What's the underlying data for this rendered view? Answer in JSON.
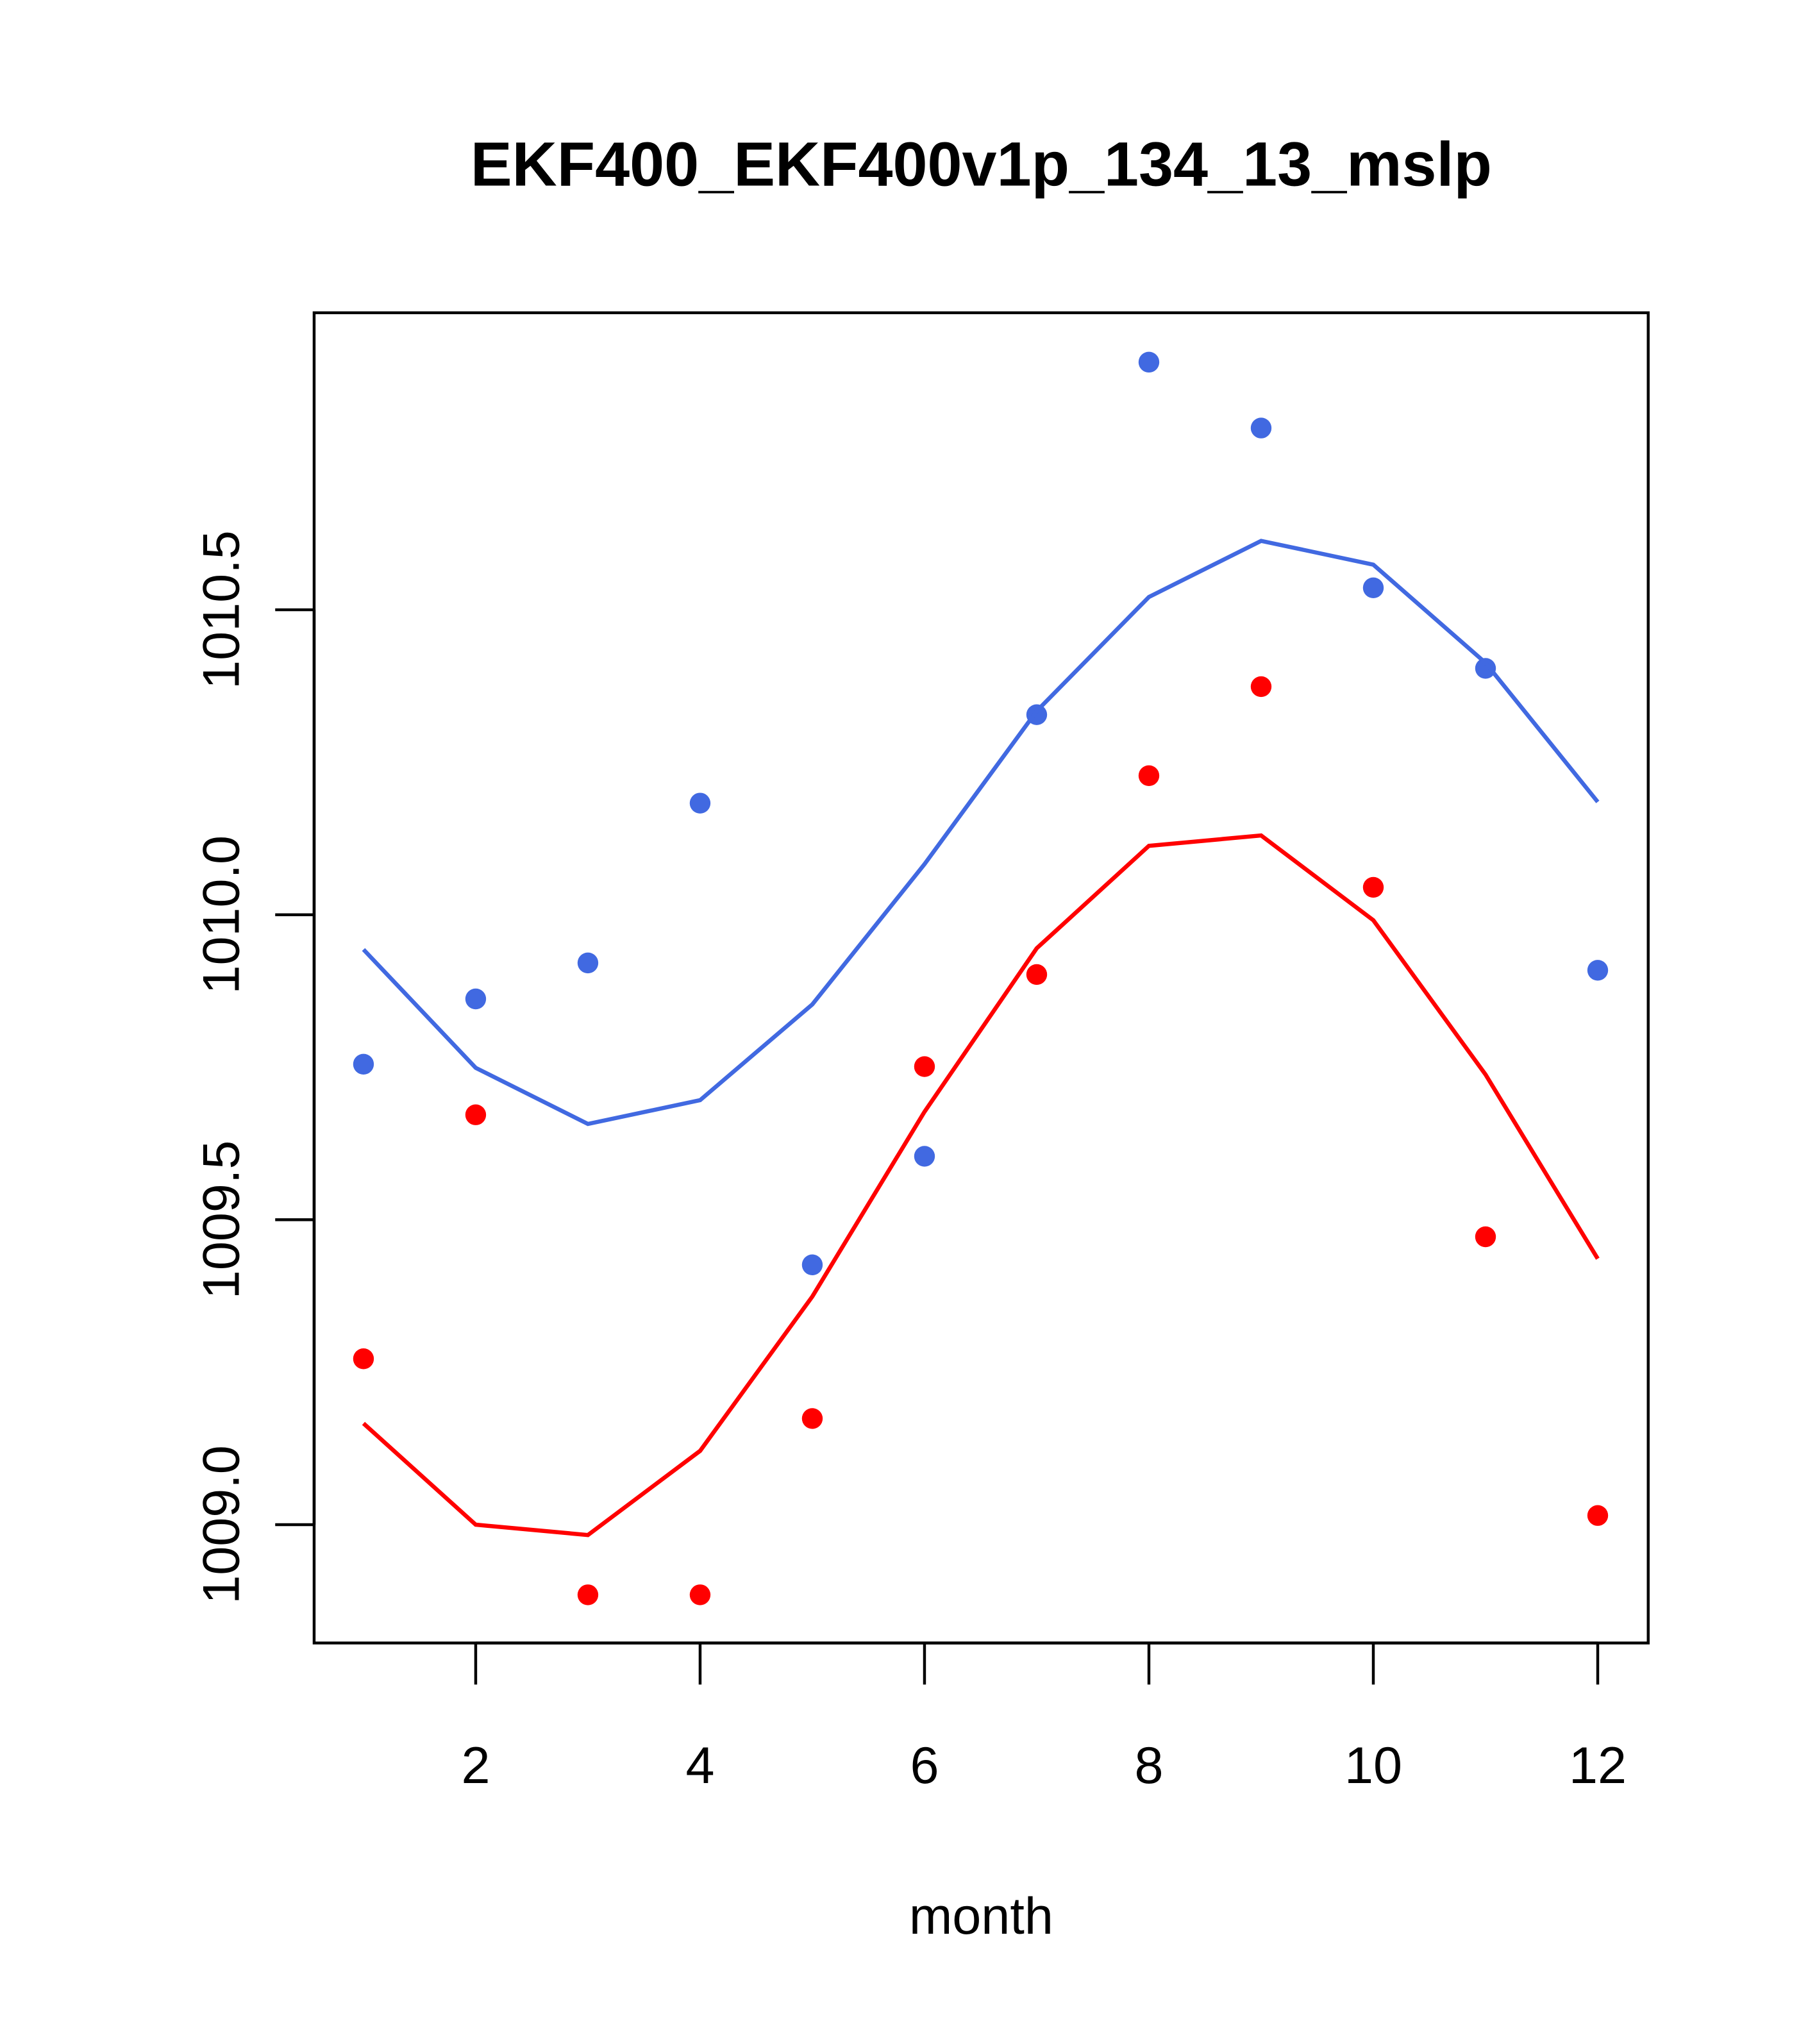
{
  "chart_data": {
    "type": "line",
    "title": "EKF400_EKF400v1p_134_13_mslp",
    "xlabel": "month",
    "ylabel": "",
    "xlim": [
      0.56,
      12.45
    ],
    "ylim": [
      1008.806,
      1010.987
    ],
    "x_ticks": [
      2,
      4,
      6,
      8,
      10,
      12
    ],
    "x_tick_labels": [
      "2",
      "4",
      "6",
      "8",
      "10",
      "12"
    ],
    "y_ticks": [
      1009.0,
      1009.5,
      1010.0,
      1010.5
    ],
    "y_tick_labels": [
      "1009.0",
      "1009.5",
      "1010.0",
      "1010.5"
    ],
    "x": [
      1,
      2,
      3,
      4,
      5,
      6,
      7,
      8,
      9,
      10,
      11,
      12
    ],
    "series": [
      {
        "name": "blue points",
        "kind": "points",
        "color": "#4169e1",
        "values": [
          1009.755,
          1009.862,
          1009.921,
          1010.183,
          1009.426,
          1009.604,
          1010.328,
          1010.906,
          1010.798,
          1010.536,
          1010.404,
          1009.909
        ]
      },
      {
        "name": "blue line",
        "kind": "line",
        "color": "#4169e1",
        "values": [
          1009.943,
          1009.749,
          1009.657,
          1009.696,
          1009.853,
          1010.083,
          1010.334,
          1010.521,
          1010.613,
          1010.574,
          1010.413,
          1010.185
        ]
      },
      {
        "name": "red points",
        "kind": "points",
        "color": "#ff0000",
        "values": [
          1009.272,
          1009.672,
          1008.885,
          1008.885,
          1009.174,
          1009.751,
          1009.902,
          1010.228,
          1010.374,
          1010.045,
          1009.472,
          1009.015
        ]
      },
      {
        "name": "red line",
        "kind": "line",
        "color": "#ff0000",
        "values": [
          1009.166,
          1009.0,
          1008.983,
          1009.121,
          1009.374,
          1009.677,
          1009.945,
          1010.113,
          1010.13,
          1009.991,
          1009.738,
          1009.436
        ]
      }
    ],
    "grid": false,
    "legend": "none"
  }
}
